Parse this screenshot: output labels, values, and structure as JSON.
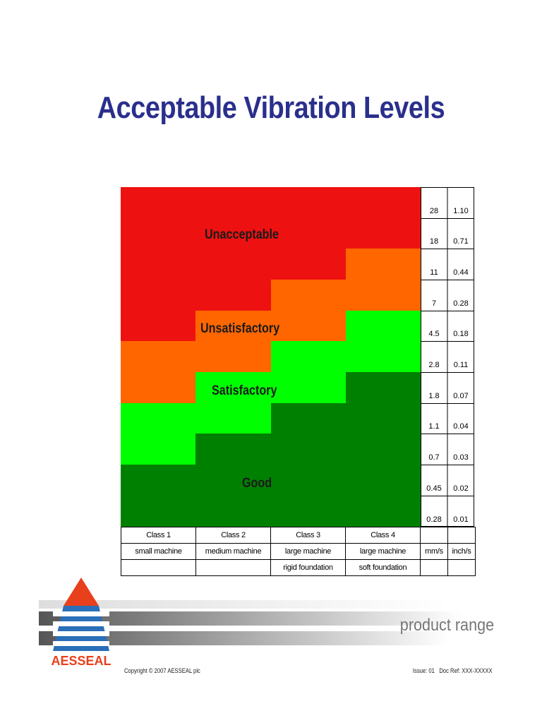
{
  "title": "Acceptable Vibration Levels",
  "zones": {
    "unacceptable": "Unacceptable",
    "unsatisfactory": "Unsatisfactory",
    "satisfactory": "Satisfactory",
    "good": "Good"
  },
  "colors": {
    "unacceptable": "#ee1111",
    "unsatisfactory": "#ff6600",
    "satisfactory": "#00ff00",
    "good": "#008000",
    "title": "#2a2f8c"
  },
  "scale": {
    "mm_s": [
      "28",
      "18",
      "11",
      "7",
      "4.5",
      "2.8",
      "1.8",
      "1.1",
      "0.7",
      "0.45",
      "0.28"
    ],
    "inch_s": [
      "1.10",
      "0.71",
      "0.44",
      "0.28",
      "0.18",
      "0.11",
      "0.07",
      "0.04",
      "0.03",
      "0.02",
      "0.01"
    ],
    "unit_mm": "mm/s",
    "unit_inch": "inch/s"
  },
  "classes": [
    {
      "name": "Class 1",
      "desc": "small machine",
      "foundation": ""
    },
    {
      "name": "Class 2",
      "desc": "medium machine",
      "foundation": ""
    },
    {
      "name": "Class 3",
      "desc": "large machine",
      "foundation": "rigid foundation"
    },
    {
      "name": "Class 4",
      "desc": "large machine",
      "foundation": "soft foundation"
    }
  ],
  "footer": {
    "logo_text": "AESSEAL",
    "product_range": "product range",
    "copyright": "Copyright © 2007 AESSEAL plc",
    "issue": "Issue: 01",
    "doc_ref": "Doc Ref: XXX-XXXXX"
  }
}
